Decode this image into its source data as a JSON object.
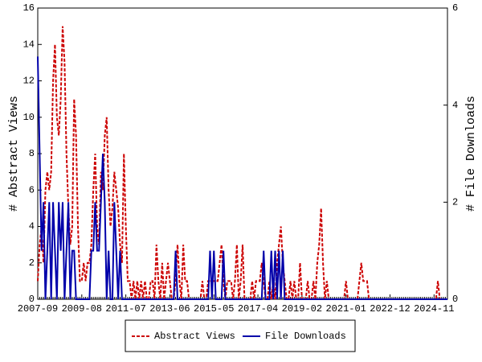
{
  "chart_data": {
    "type": "line",
    "y_label": "# Abstract Views",
    "y2_label": "# File Downloads",
    "x": [
      "2007-09",
      null,
      null,
      null,
      null,
      null,
      null,
      null,
      null,
      null,
      null,
      null,
      null,
      null,
      null,
      null,
      null,
      null,
      null,
      null,
      null,
      null,
      null,
      "2009-08",
      null,
      null,
      null,
      null,
      null,
      null,
      null,
      null,
      null,
      null,
      null,
      null,
      null,
      null,
      null,
      null,
      null,
      null,
      null,
      null,
      null,
      null,
      "2011-07",
      null,
      null,
      null,
      null,
      null,
      null,
      null,
      null,
      null,
      null,
      null,
      null,
      null,
      null,
      null,
      null,
      null,
      null,
      null,
      null,
      null,
      null,
      "2013-06",
      null,
      null,
      null,
      null,
      null,
      null,
      null,
      null,
      null,
      null,
      null,
      null,
      null,
      null,
      null,
      null,
      null,
      null,
      null,
      null,
      null,
      null,
      "2015-05",
      null,
      null,
      null,
      null,
      null,
      null,
      null,
      null,
      null,
      null,
      null,
      null,
      null,
      null,
      null,
      null,
      null,
      null,
      null,
      null,
      null,
      null,
      "2017-04",
      null,
      null,
      null,
      null,
      null,
      null,
      null,
      null,
      null,
      null,
      null,
      null,
      null,
      null,
      null,
      null,
      null,
      null,
      null,
      null,
      null,
      null,
      "2019-02",
      null,
      null,
      null,
      null,
      null,
      null,
      null,
      null,
      null,
      null,
      null,
      null,
      null,
      null,
      null,
      null,
      null,
      null,
      null,
      null,
      null,
      null,
      "2021-01",
      null,
      null,
      null,
      null,
      null,
      null,
      null,
      null,
      null,
      null,
      null,
      null,
      null,
      null,
      null,
      null,
      null,
      null,
      null,
      null,
      null,
      null,
      "2022-12",
      null,
      null,
      null,
      null,
      null,
      null,
      null,
      null,
      null,
      null,
      null,
      null,
      null,
      null,
      null,
      null,
      null,
      null,
      null,
      null,
      null,
      null,
      "2024-11",
      null,
      null,
      null,
      null,
      null,
      null,
      null
    ],
    "series": [
      {
        "name": "Abstract Views",
        "color": "#cc0000",
        "dash": true,
        "values": [
          1,
          3,
          4,
          2,
          6,
          7,
          6,
          7,
          12,
          14,
          10,
          9,
          11,
          15,
          13,
          8,
          5,
          3,
          4,
          11,
          9,
          4,
          1,
          1,
          2,
          1,
          2,
          2,
          3,
          6,
          8,
          4,
          3,
          7,
          6,
          9,
          10,
          6,
          4,
          5,
          7,
          6,
          5,
          3,
          2,
          8,
          4,
          1,
          1,
          0,
          1,
          0,
          1,
          0,
          1,
          0,
          1,
          0,
          0,
          1,
          1,
          0,
          3,
          1,
          0,
          2,
          0,
          1,
          2,
          1,
          0,
          0,
          1,
          3,
          1,
          0,
          3,
          1,
          1,
          0,
          0,
          0,
          0,
          0,
          0,
          0,
          1,
          0,
          0,
          1,
          1,
          1,
          1,
          1,
          1,
          2,
          3,
          1,
          0,
          1,
          1,
          1,
          0,
          1,
          3,
          0,
          1,
          3,
          0,
          0,
          0,
          0,
          1,
          0,
          1,
          1,
          1,
          2,
          1,
          0,
          0,
          1,
          0,
          1,
          0,
          2,
          3,
          4,
          2,
          1,
          0,
          0,
          1,
          0,
          1,
          0,
          0,
          2,
          0,
          0,
          0,
          1,
          0,
          0,
          1,
          0,
          2,
          3,
          5,
          2,
          0,
          1,
          0,
          0,
          0,
          0,
          0,
          0,
          0,
          0,
          0,
          1,
          0,
          0,
          0,
          0,
          0,
          0,
          1,
          2,
          1,
          1,
          1,
          0,
          0,
          0,
          0,
          0,
          0,
          0,
          0,
          0,
          0,
          0,
          0,
          0,
          0,
          0,
          0,
          0,
          0,
          0,
          0,
          0,
          0,
          0,
          0,
          0,
          0,
          0,
          0,
          0,
          0,
          0,
          0,
          0,
          0,
          0,
          0,
          1,
          0,
          0,
          0,
          0,
          0
        ]
      },
      {
        "name": "File Downloads",
        "color": "#0000aa",
        "axis": "y2",
        "values": [
          5,
          3,
          1,
          2,
          0,
          1,
          2,
          0,
          2,
          1,
          0,
          2,
          1,
          2,
          0,
          1,
          2,
          0,
          1,
          1,
          0,
          0,
          0,
          0,
          0,
          0,
          0,
          0,
          1,
          1,
          2,
          1,
          1,
          2,
          3,
          2,
          0,
          1,
          0,
          0,
          2,
          1,
          0,
          1,
          0,
          0,
          0,
          0,
          0,
          0,
          0,
          0,
          0,
          0,
          0,
          0,
          0,
          0,
          0,
          0,
          0,
          0,
          0,
          0,
          0,
          0,
          0,
          0,
          0,
          0,
          0,
          0,
          1,
          0,
          0,
          0,
          0,
          0,
          0,
          0,
          0,
          0,
          0,
          0,
          0,
          0,
          0,
          0,
          0,
          0,
          1,
          0,
          1,
          0,
          0,
          0,
          0,
          1,
          0,
          0,
          0,
          0,
          0,
          0,
          0,
          0,
          0,
          0,
          0,
          0,
          0,
          0,
          0,
          0,
          0,
          0,
          0,
          0,
          1,
          0,
          0,
          0,
          1,
          0,
          1,
          0,
          1,
          0,
          1,
          0,
          0,
          0,
          0,
          0,
          0,
          0,
          0,
          0,
          0,
          0,
          0,
          0,
          0,
          0,
          0,
          0,
          0,
          0,
          0,
          0,
          0,
          0,
          0,
          0,
          0,
          0,
          0,
          0,
          0,
          0,
          0,
          0,
          0,
          0,
          0,
          0,
          0,
          0,
          0,
          0,
          0,
          0,
          0,
          0,
          0,
          0,
          0,
          0,
          0,
          0,
          0,
          0,
          0,
          0,
          0,
          0,
          0,
          0,
          0,
          0,
          0,
          0,
          0,
          0,
          0,
          0,
          0,
          0,
          0,
          0,
          0,
          0,
          0,
          0,
          0,
          0,
          0,
          0,
          0,
          0,
          0,
          0,
          0,
          0,
          0
        ]
      }
    ],
    "ylim": [
      0,
      16
    ],
    "yticks": [
      0,
      2,
      4,
      6,
      8,
      10,
      12,
      14,
      16
    ],
    "y2lim": [
      0,
      6
    ],
    "y2ticks": [
      0,
      2,
      4,
      6
    ],
    "legend": "bottom"
  }
}
